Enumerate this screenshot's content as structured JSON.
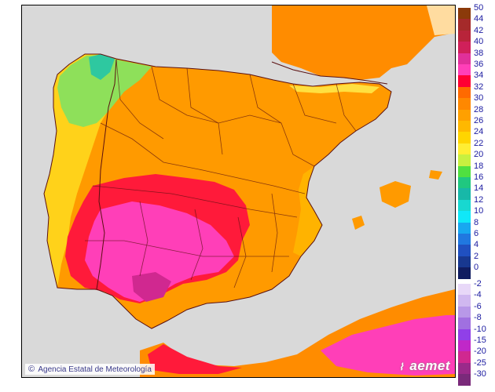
{
  "map": {
    "credit": "Agencia Estatal de Meteorología",
    "credit_symbol": "©",
    "brand": "aemet",
    "colors": {
      "sea": "#d9d9d9",
      "border": "#5a1010",
      "land_hot": "#ff7a00",
      "land_warm": "#ffa500",
      "land_mild": "#ffd000",
      "land_cool": "#ffee33",
      "land_green": "#7fe05a",
      "land_teal": "#2ec8a0",
      "land_red": "#ff1a3a",
      "land_magenta": "#ff3fb8",
      "land_very_hot": "#e0309a"
    }
  },
  "legend": {
    "upper": [
      {
        "label": "50",
        "color": "#8b3a0a"
      },
      {
        "label": "44",
        "color": "#a52a2a"
      },
      {
        "label": "42",
        "color": "#b8243a"
      },
      {
        "label": "40",
        "color": "#d0205a"
      },
      {
        "label": "38",
        "color": "#e0309a"
      },
      {
        "label": "36",
        "color": "#ff3fb8"
      },
      {
        "label": "34",
        "color": "#ff0033"
      },
      {
        "label": "32",
        "color": "#ff6a00"
      },
      {
        "label": "30",
        "color": "#ff8800"
      },
      {
        "label": "28",
        "color": "#ffa000"
      },
      {
        "label": "26",
        "color": "#ffb800"
      },
      {
        "label": "24",
        "color": "#ffd500"
      },
      {
        "label": "22",
        "color": "#ffee33"
      },
      {
        "label": "20",
        "color": "#c8f040"
      },
      {
        "label": "18",
        "color": "#50e040"
      },
      {
        "label": "16",
        "color": "#20c880"
      },
      {
        "label": "14",
        "color": "#18b8a8"
      },
      {
        "label": "12",
        "color": "#18d8d0"
      },
      {
        "label": "10",
        "color": "#10e8f8"
      },
      {
        "label": "8",
        "color": "#18a8f0"
      },
      {
        "label": "6",
        "color": "#2078e0"
      },
      {
        "label": "4",
        "color": "#2050c0"
      },
      {
        "label": "2",
        "color": "#183890"
      },
      {
        "label": "0",
        "color": "#101c60"
      }
    ],
    "lower": [
      {
        "label": "-2",
        "color": "#e8d8f8"
      },
      {
        "label": "-4",
        "color": "#d0b8f0"
      },
      {
        "label": "-6",
        "color": "#b898e8"
      },
      {
        "label": "-8",
        "color": "#a070e0"
      },
      {
        "label": "-10",
        "color": "#9040e8"
      },
      {
        "label": "-15",
        "color": "#c028c8"
      },
      {
        "label": "-20",
        "color": "#d02890"
      },
      {
        "label": "-25",
        "color": "#9a2a8a"
      },
      {
        "label": "-30",
        "color": "#7a2a7a"
      }
    ]
  }
}
